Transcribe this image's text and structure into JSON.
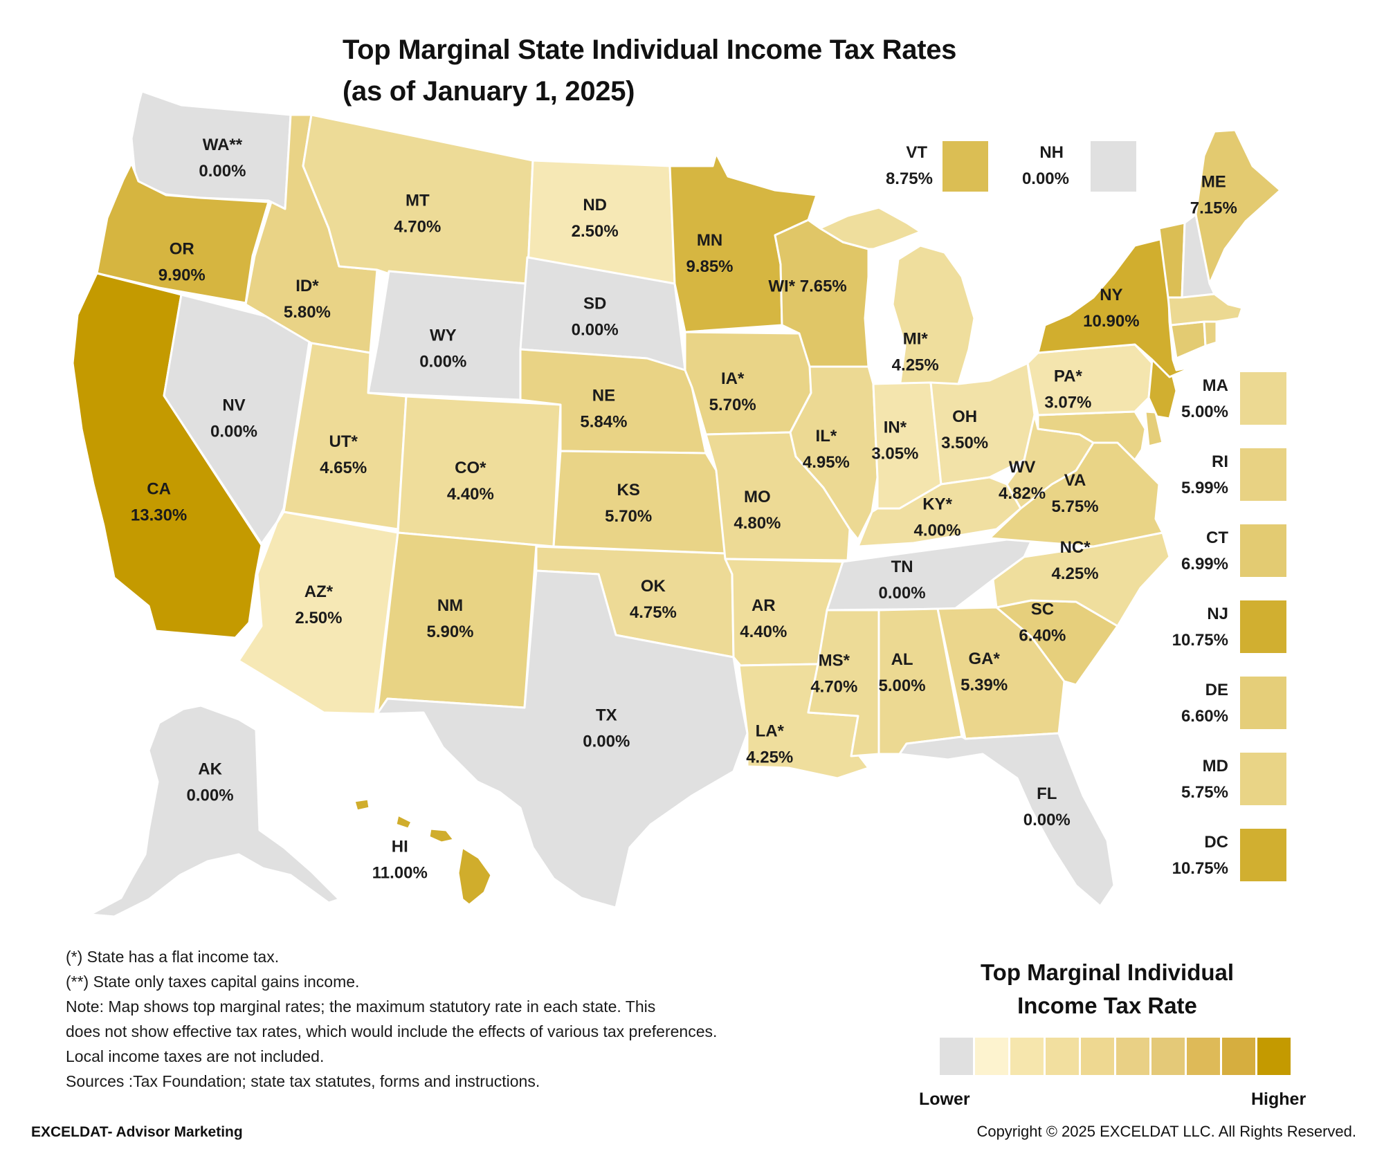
{
  "title_line1": "Top Marginal State Individual Income Tax Rates",
  "title_line2": "(as of January 1, 2025)",
  "states": [
    {
      "abbr": "WA**",
      "rate": "0.00%"
    },
    {
      "abbr": "OR",
      "rate": "9.90%"
    },
    {
      "abbr": "CA",
      "rate": "13.30%"
    },
    {
      "abbr": "NV",
      "rate": "0.00%"
    },
    {
      "abbr": "ID*",
      "rate": "5.80%"
    },
    {
      "abbr": "MT",
      "rate": "4.70%"
    },
    {
      "abbr": "WY",
      "rate": "0.00%"
    },
    {
      "abbr": "UT*",
      "rate": "4.65%"
    },
    {
      "abbr": "CO*",
      "rate": "4.40%"
    },
    {
      "abbr": "AZ*",
      "rate": "2.50%"
    },
    {
      "abbr": "NM",
      "rate": "5.90%"
    },
    {
      "abbr": "ND",
      "rate": "2.50%"
    },
    {
      "abbr": "SD",
      "rate": "0.00%"
    },
    {
      "abbr": "NE",
      "rate": "5.84%"
    },
    {
      "abbr": "KS",
      "rate": "5.70%"
    },
    {
      "abbr": "OK",
      "rate": "4.75%"
    },
    {
      "abbr": "TX",
      "rate": "0.00%"
    },
    {
      "abbr": "MN",
      "rate": "9.85%"
    },
    {
      "abbr": "IA*",
      "rate": "5.70%"
    },
    {
      "abbr": "MO",
      "rate": "4.80%"
    },
    {
      "abbr": "AR",
      "rate": "4.40%"
    },
    {
      "abbr": "LA*",
      "rate": "4.25%"
    },
    {
      "abbr": "WI*",
      "rate": "7.65%"
    },
    {
      "abbr": "IL*",
      "rate": "4.95%"
    },
    {
      "abbr": "MI*",
      "rate": "4.25%"
    },
    {
      "abbr": "IN*",
      "rate": "3.05%"
    },
    {
      "abbr": "OH",
      "rate": "3.50%"
    },
    {
      "abbr": "KY*",
      "rate": "4.00%"
    },
    {
      "abbr": "TN",
      "rate": "0.00%"
    },
    {
      "abbr": "MS*",
      "rate": "4.70%"
    },
    {
      "abbr": "AL",
      "rate": "5.00%"
    },
    {
      "abbr": "GA*",
      "rate": "5.39%"
    },
    {
      "abbr": "FL",
      "rate": "0.00%"
    },
    {
      "abbr": "SC",
      "rate": "6.40%"
    },
    {
      "abbr": "NC*",
      "rate": "4.25%"
    },
    {
      "abbr": "VA",
      "rate": "5.75%"
    },
    {
      "abbr": "WV",
      "rate": "4.82%"
    },
    {
      "abbr": "PA*",
      "rate": "3.07%"
    },
    {
      "abbr": "NY",
      "rate": "10.90%"
    },
    {
      "abbr": "ME",
      "rate": "7.15%"
    },
    {
      "abbr": "AK",
      "rate": "0.00%"
    },
    {
      "abbr": "HI",
      "rate": "11.00%"
    }
  ],
  "small_states_top": [
    {
      "abbr": "VT",
      "rate": "8.75%"
    },
    {
      "abbr": "NH",
      "rate": "0.00%"
    }
  ],
  "small_states_side": [
    {
      "abbr": "MA",
      "rate": "5.00%"
    },
    {
      "abbr": "RI",
      "rate": "5.99%"
    },
    {
      "abbr": "CT",
      "rate": "6.99%"
    },
    {
      "abbr": "NJ",
      "rate": "10.75%"
    },
    {
      "abbr": "DE",
      "rate": "6.60%"
    },
    {
      "abbr": "MD",
      "rate": "5.75%"
    },
    {
      "abbr": "DC",
      "rate": "10.75%"
    }
  ],
  "notes": [
    "(*) State has a flat income tax.",
    "(**) State only taxes capital gains income.",
    "Note: Map shows top marginal rates; the maximum statutory rate in each state. This",
    "does not show effective tax rates, which would include the effects of various tax preferences.",
    "Local income taxes are not included.",
    "Sources :Tax Foundation; state tax statutes, forms and instructions."
  ],
  "legend": {
    "title_line1": "Top Marginal Individual",
    "title_line2": "Income Tax Rate",
    "low_label": "Lower",
    "high_label": "Higher",
    "colors": [
      "#e0e0e0",
      "#fdf3cf",
      "#f6e6ad",
      "#f2df9f",
      "#eed891",
      "#e9d085",
      "#e4c978",
      "#deba58",
      "#d6ae3f",
      "#c49a00"
    ]
  },
  "colors": {
    "zero": "#e0e0e0",
    "ramp_low": "#fdf3cf",
    "ramp_high": "#c49a00",
    "max_rate": 13.3
  },
  "footer": {
    "brand": "EXCELDAT- Advisor Marketing",
    "copyright": "Copyright © 2025 EXCELDAT LLC. All Rights Reserved."
  }
}
